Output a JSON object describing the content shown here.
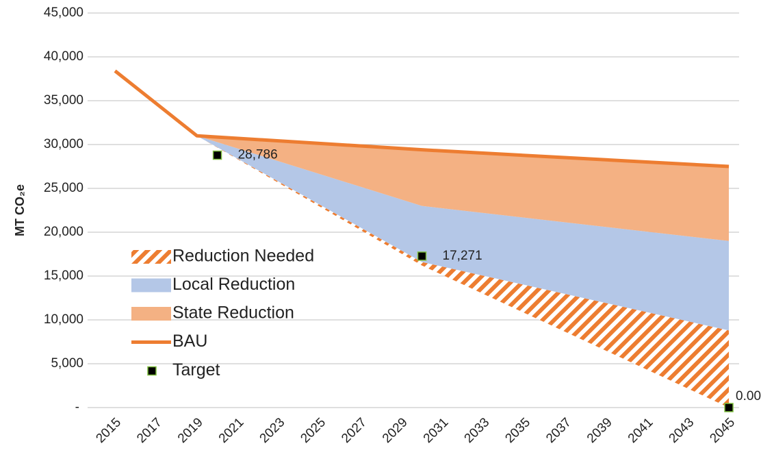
{
  "chart_data": {
    "type": "line",
    "y_label": "MT CO₂e",
    "xlim": [
      2013.66,
      2045.5
    ],
    "xticks": [
      2015,
      2017,
      2019,
      2021,
      2023,
      2025,
      2027,
      2029,
      2031,
      2033,
      2035,
      2037,
      2039,
      2041,
      2043,
      2045
    ],
    "ylim": [
      0,
      45000
    ],
    "yticks": [
      {
        "value": 0,
        "label": "-"
      },
      {
        "value": 5000,
        "label": "5,000"
      },
      {
        "value": 10000,
        "label": "10,000"
      },
      {
        "value": 15000,
        "label": "15,000"
      },
      {
        "value": 20000,
        "label": "20,000"
      },
      {
        "value": 25000,
        "label": "25,000"
      },
      {
        "value": 30000,
        "label": "30,000"
      },
      {
        "value": 35000,
        "label": "35,000"
      },
      {
        "value": 40000,
        "label": "40,000"
      },
      {
        "value": 45000,
        "label": "45,000"
      }
    ],
    "grid": true,
    "legend": "left",
    "areas": [
      {
        "name": "Reduction Needed",
        "color": "#ed7d31",
        "hatch": true,
        "x": [
          2019,
          2030,
          2045
        ],
        "low": [
          31000,
          16200,
          0
        ],
        "high": [
          31000,
          16600,
          8800
        ]
      },
      {
        "name": "Local Reduction",
        "color": "#b4c7e7",
        "x": [
          2019,
          2030,
          2045
        ],
        "low": [
          31000,
          16600,
          8800
        ],
        "high": [
          31000,
          23000,
          19000
        ]
      },
      {
        "name": "State Reduction",
        "color": "#f4b183",
        "x": [
          2019,
          2030,
          2045
        ],
        "low": [
          31000,
          23000,
          19000
        ],
        "high": [
          31000,
          29400,
          27500
        ]
      }
    ],
    "series": [
      {
        "name": "BAU",
        "color": "#ed7d31",
        "x": [
          2015,
          2019,
          2030,
          2045
        ],
        "values": [
          38400,
          31000,
          29400,
          27500
        ]
      },
      {
        "name": "Target",
        "color": "#000000",
        "marker": true,
        "x": [
          2020,
          2030,
          2045
        ],
        "values": [
          28786,
          17271,
          0
        ],
        "value_labels": [
          "28,786",
          "17,271",
          "0.00"
        ]
      }
    ]
  }
}
